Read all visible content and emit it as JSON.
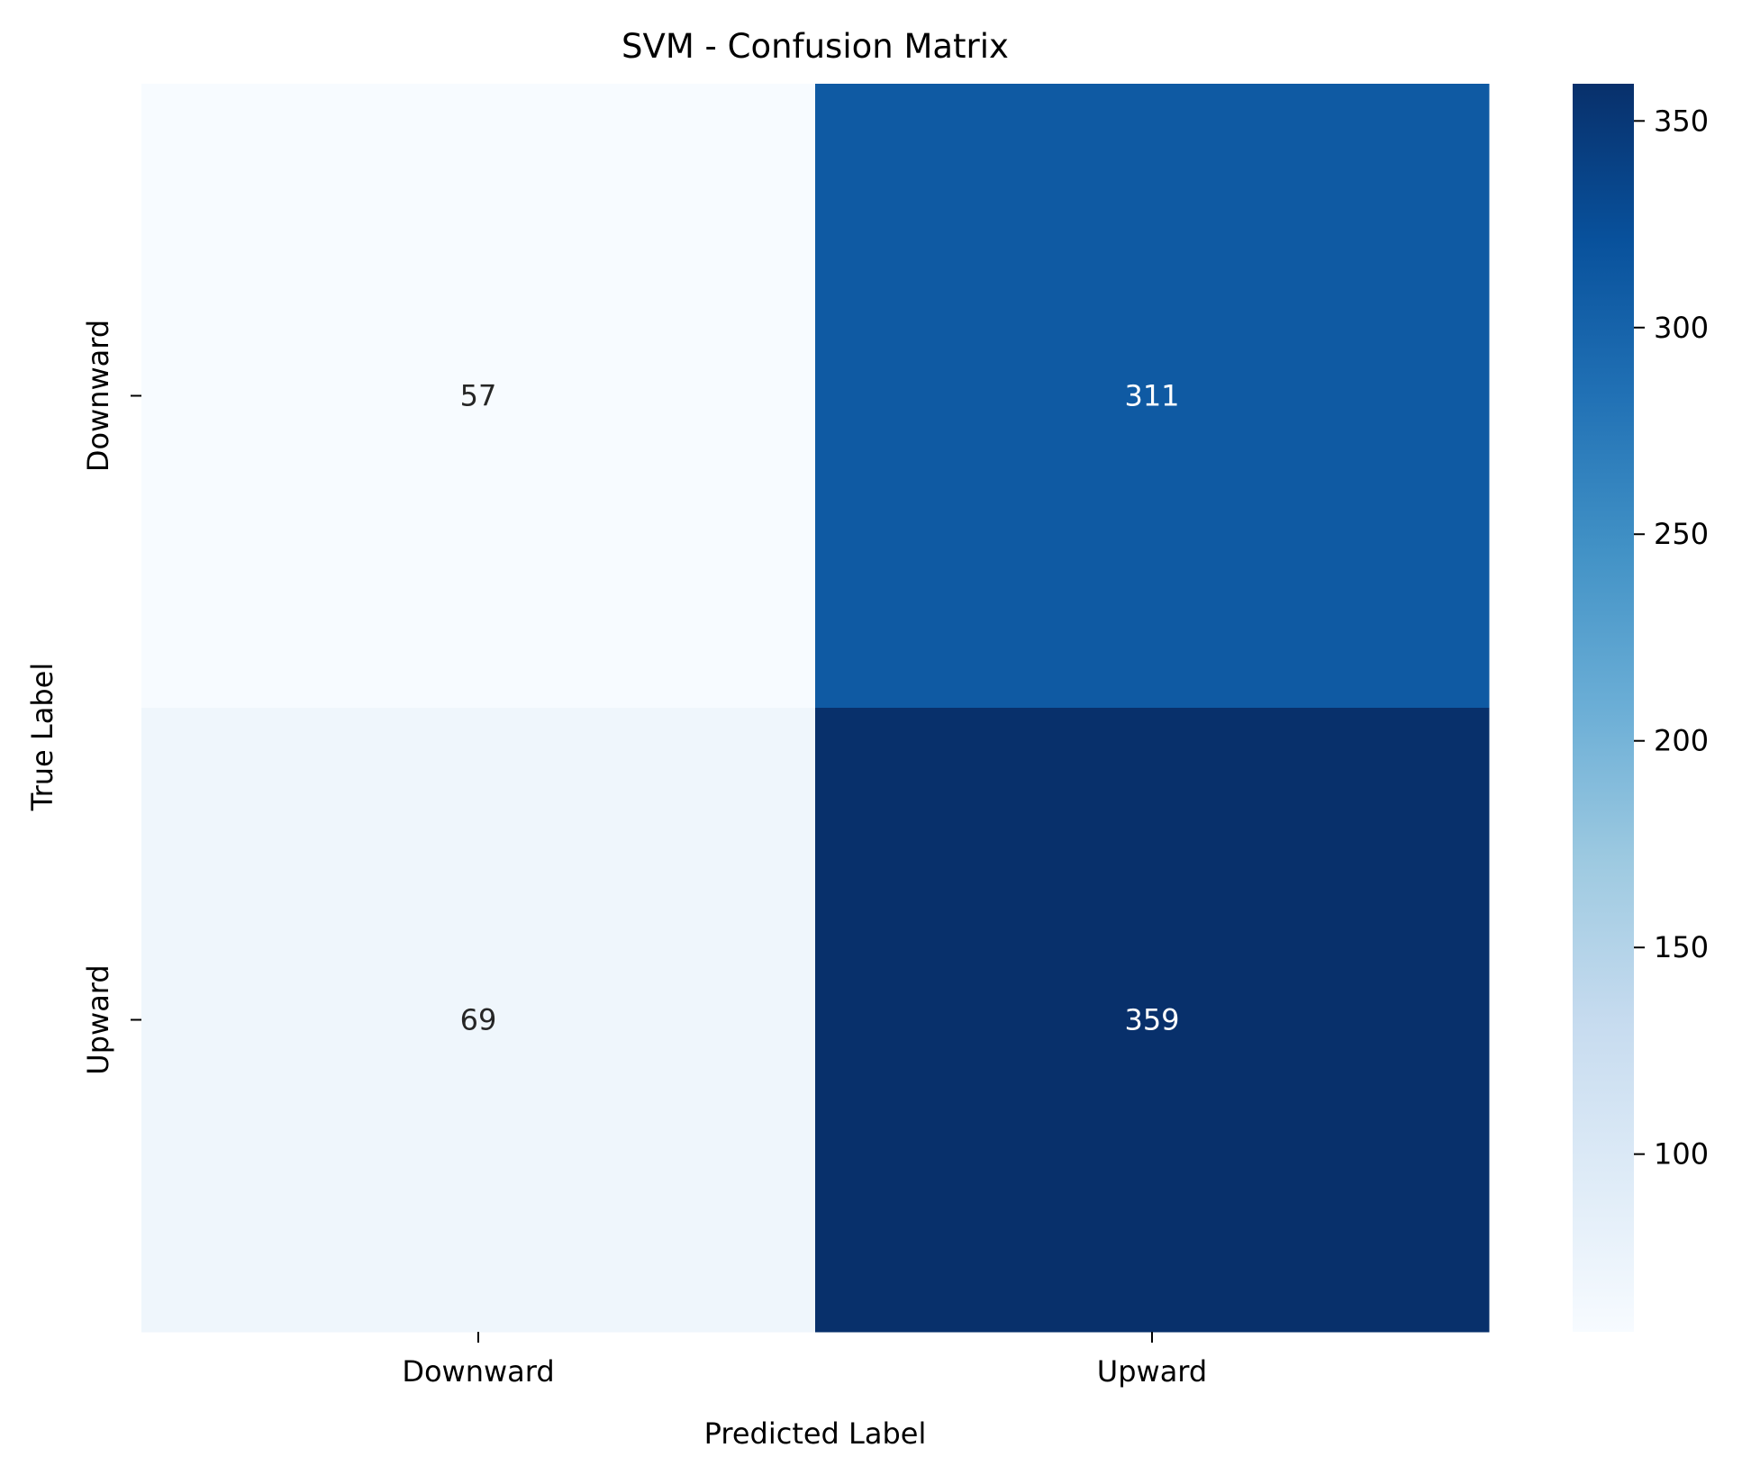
{
  "chart_data": {
    "type": "heatmap",
    "title": "SVM - Confusion Matrix",
    "xlabel": "Predicted Label",
    "ylabel": "True Label",
    "x_categories": [
      "Downward",
      "Upward"
    ],
    "y_categories": [
      "Downward",
      "Upward"
    ],
    "values": [
      [
        57,
        311
      ],
      [
        69,
        359
      ]
    ],
    "colormap": "Blues",
    "color_range": [
      57,
      359
    ],
    "colorbar_ticks": [
      100,
      150,
      200,
      250,
      300,
      350
    ],
    "colorbar_tick_labels": [
      "100",
      "150",
      "200",
      "250",
      "300",
      "350"
    ],
    "grid": false
  }
}
